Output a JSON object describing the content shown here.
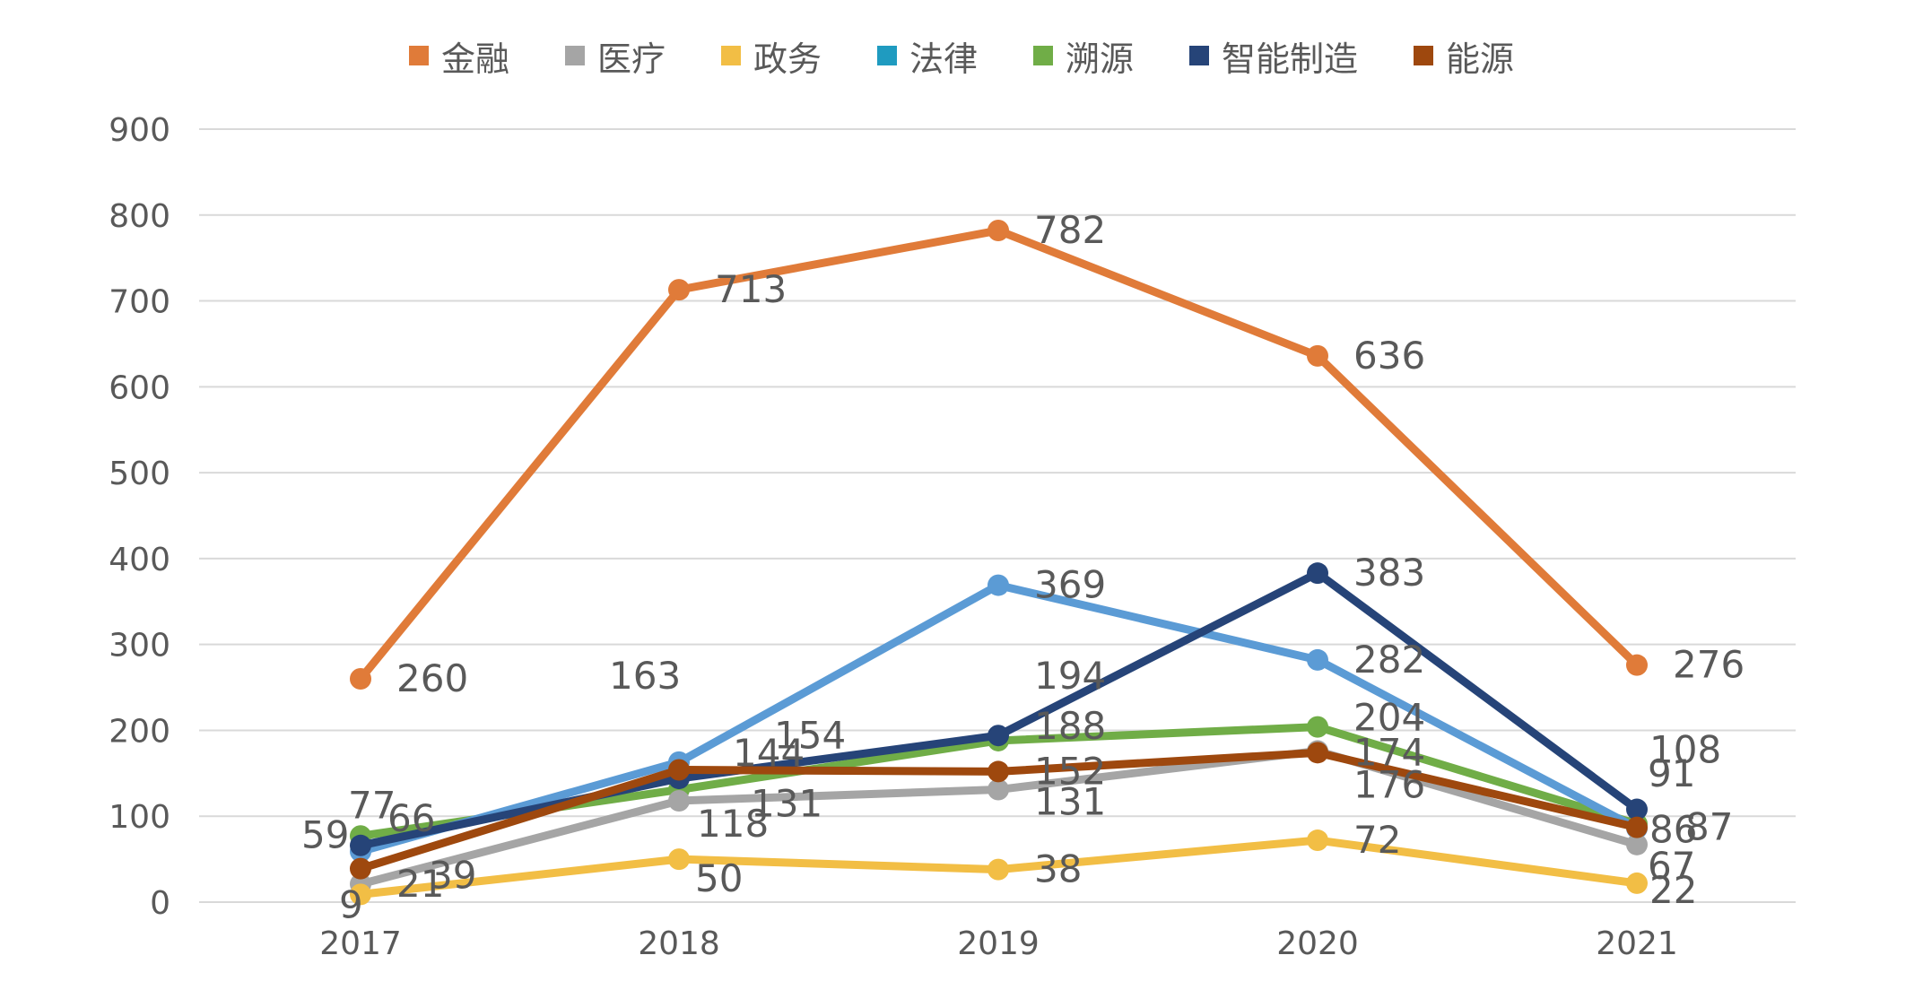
{
  "chart_data": {
    "type": "line",
    "title": "",
    "xlabel": "",
    "ylabel": "",
    "x": [
      "2017",
      "2018",
      "2019",
      "2020",
      "2021"
    ],
    "ylim": [
      0,
      900
    ],
    "yticks": [
      0,
      100,
      200,
      300,
      400,
      500,
      600,
      700,
      800,
      900
    ],
    "grid": "horizontal",
    "legend": "top-center",
    "series": [
      {
        "name": "金融",
        "color": "#E07B39",
        "values": [
          260,
          713,
          782,
          636,
          276
        ]
      },
      {
        "name": "医疗",
        "color": "#A5A5A5",
        "values": [
          21,
          118,
          131,
          176,
          67
        ]
      },
      {
        "name": "政务",
        "color": "#F2BE45",
        "values": [
          9,
          50,
          38,
          72,
          22
        ]
      },
      {
        "name": "法律",
        "color": "#5B9BD5",
        "values": [
          59,
          163,
          369,
          282,
          86
        ]
      },
      {
        "name": "溯源",
        "color": "#70AD47",
        "values": [
          77,
          131,
          188,
          204,
          91
        ]
      },
      {
        "name": "智能制造",
        "color": "#264478",
        "values": [
          66,
          144,
          194,
          383,
          108
        ]
      },
      {
        "name": "能源",
        "color": "#9E480E",
        "values": [
          39,
          154,
          152,
          174,
          87
        ]
      }
    ]
  },
  "legend_colors": [
    "#E07B39",
    "#A5A5A5",
    "#F2BE45",
    "#1F9BC0",
    "#70AD47",
    "#264478",
    "#9E480E"
  ]
}
